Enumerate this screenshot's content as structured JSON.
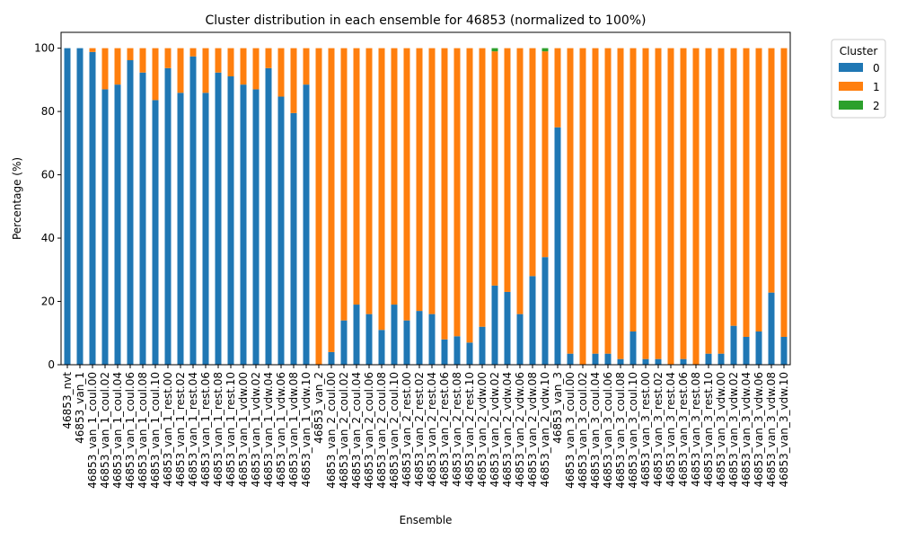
{
  "chart_data": {
    "type": "bar",
    "stacked": true,
    "title": "Cluster distribution in each ensemble for 46853 (normalized to 100%)",
    "xlabel": "Ensemble",
    "ylabel": "Percentage (%)",
    "ylim": [
      0,
      105
    ],
    "yticks": [
      0,
      20,
      40,
      60,
      80,
      100
    ],
    "legend": {
      "title": "Cluster",
      "position": "outside-top-right"
    },
    "categories": [
      "46853_nvt",
      "46853_van_1",
      "46853_van_1_coul.00",
      "46853_van_1_coul.02",
      "46853_van_1_coul.04",
      "46853_van_1_coul.06",
      "46853_van_1_coul.08",
      "46853_van_1_coul.10",
      "46853_van_1_rest.00",
      "46853_van_1_rest.02",
      "46853_van_1_rest.04",
      "46853_van_1_rest.06",
      "46853_van_1_rest.08",
      "46853_van_1_rest.10",
      "46853_van_1_vdw.00",
      "46853_van_1_vdw.02",
      "46853_van_1_vdw.04",
      "46853_van_1_vdw.06",
      "46853_van_1_vdw.08",
      "46853_van_1_vdw.10",
      "46853_van_2",
      "46853_van_2_coul.00",
      "46853_van_2_coul.02",
      "46853_van_2_coul.04",
      "46853_van_2_coul.06",
      "46853_van_2_coul.08",
      "46853_van_2_coul.10",
      "46853_van_2_rest.00",
      "46853_van_2_rest.02",
      "46853_van_2_rest.04",
      "46853_van_2_rest.06",
      "46853_van_2_rest.08",
      "46853_van_2_rest.10",
      "46853_van_2_vdw.00",
      "46853_van_2_vdw.02",
      "46853_van_2_vdw.04",
      "46853_van_2_vdw.06",
      "46853_van_2_vdw.08",
      "46853_van_2_vdw.10",
      "46853_van_3",
      "46853_van_3_coul.00",
      "46853_van_3_coul.02",
      "46853_van_3_coul.04",
      "46853_van_3_coul.06",
      "46853_van_3_coul.08",
      "46853_van_3_coul.10",
      "46853_van_3_rest.00",
      "46853_van_3_rest.02",
      "46853_van_3_rest.04",
      "46853_van_3_rest.06",
      "46853_van_3_rest.08",
      "46853_van_3_rest.10",
      "46853_van_3_vdw.00",
      "46853_van_3_vdw.02",
      "46853_van_3_vdw.04",
      "46853_van_3_vdw.06",
      "46853_van_3_vdw.08",
      "46853_van_3_vdw.10"
    ],
    "series": [
      {
        "name": "0",
        "color": "#1f77b4",
        "values": [
          100,
          100,
          98.8,
          87,
          88.5,
          96.2,
          92.3,
          83.6,
          93.7,
          85.9,
          97.4,
          85.9,
          92.3,
          91.1,
          88.5,
          87,
          93.7,
          84.7,
          79.5,
          88.5,
          0,
          4,
          14,
          19,
          16,
          11,
          19,
          14,
          17,
          16,
          8,
          9,
          7,
          12,
          25,
          23,
          16,
          28,
          34,
          75,
          3.5,
          0,
          3.5,
          3.5,
          1.8,
          10.5,
          1.8,
          1.8,
          0,
          1.8,
          0,
          3.5,
          3.5,
          12.3,
          8.8,
          10.5,
          22.8,
          8.8
        ]
      },
      {
        "name": "1",
        "color": "#ff7f0e",
        "values": [
          0,
          0,
          1.2,
          13,
          11.5,
          3.8,
          7.7,
          16.4,
          6.3,
          14.1,
          2.6,
          14.1,
          7.7,
          8.9,
          11.5,
          13,
          6.3,
          15.3,
          20.5,
          11.5,
          100,
          96,
          86,
          81,
          84,
          89,
          81,
          86,
          83,
          84,
          92,
          91,
          93,
          88,
          74,
          77,
          84,
          72,
          65,
          25,
          96.5,
          100,
          96.5,
          96.5,
          98.2,
          89.5,
          98.2,
          98.2,
          100,
          98.2,
          100,
          96.5,
          96.5,
          87.7,
          91.2,
          89.5,
          77.2,
          91.2
        ]
      },
      {
        "name": "2",
        "color": "#2ca02c",
        "values": [
          0,
          0,
          0,
          0,
          0,
          0,
          0,
          0,
          0,
          0,
          0,
          0,
          0,
          0,
          0,
          0,
          0,
          0,
          0,
          0,
          0,
          0,
          0,
          0,
          0,
          0,
          0,
          0,
          0,
          0,
          0,
          0,
          0,
          0,
          1,
          0,
          0,
          0,
          1,
          0,
          0,
          0,
          0,
          0,
          0,
          0,
          0,
          0,
          0,
          0,
          0,
          0,
          0,
          0,
          0,
          0,
          0,
          0
        ]
      }
    ]
  }
}
